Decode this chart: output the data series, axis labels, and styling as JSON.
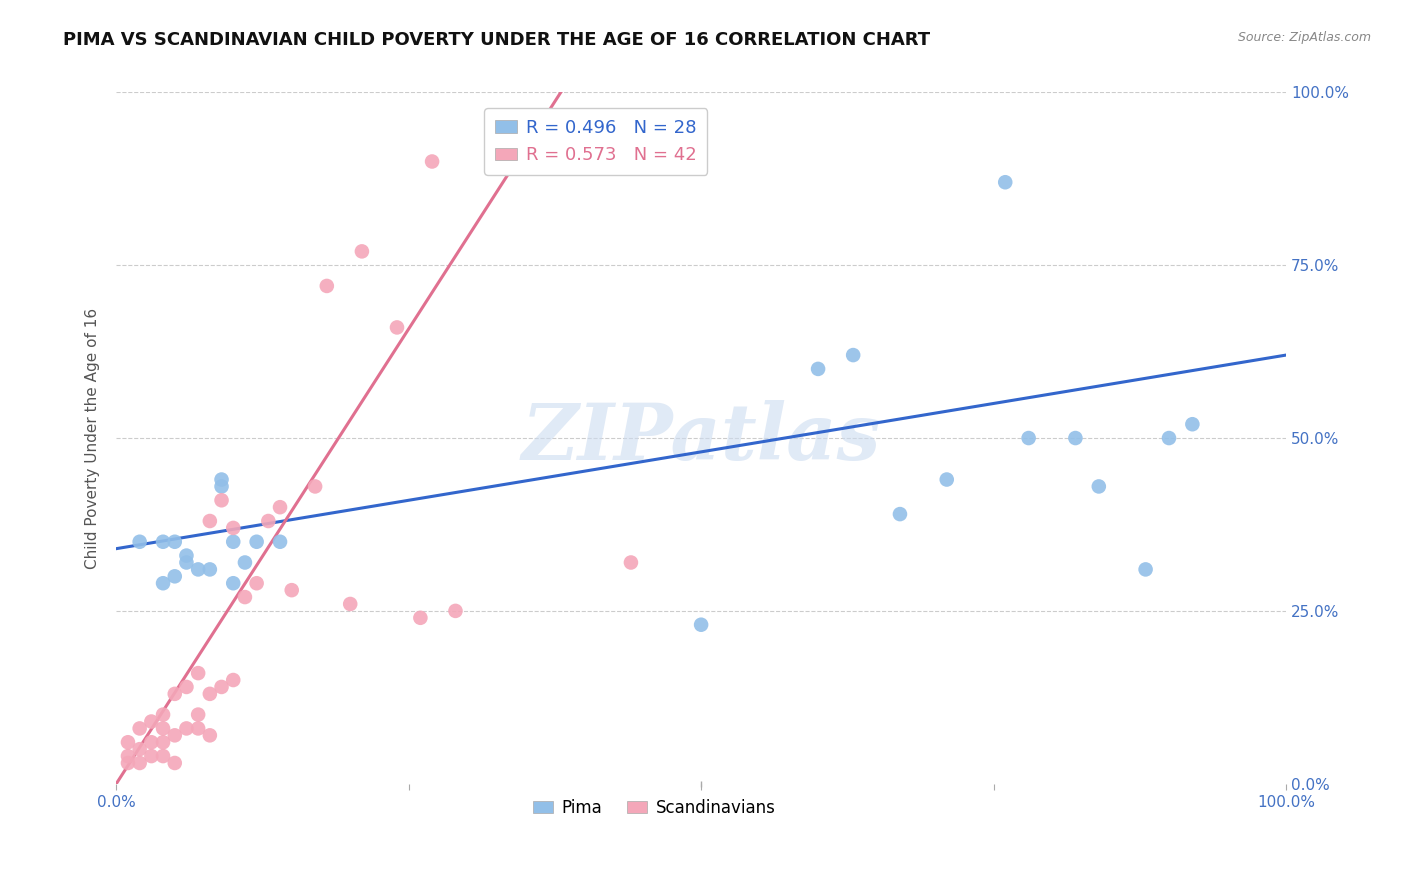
{
  "title": "PIMA VS SCANDINAVIAN CHILD POVERTY UNDER THE AGE OF 16 CORRELATION CHART",
  "source": "Source: ZipAtlas.com",
  "ylabel": "Child Poverty Under the Age of 16",
  "xlim": [
    0,
    1
  ],
  "ylim": [
    0,
    1
  ],
  "pima_color": "#92bfe8",
  "scandinavian_color": "#f4a7b9",
  "pima_line_color": "#3366cc",
  "scandinavian_line_color": "#e07090",
  "pima_R": 0.496,
  "pima_N": 28,
  "scandinavian_R": 0.573,
  "scandinavian_N": 42,
  "watermark": "ZIPatlas",
  "watermark_color": "#ccdcf0",
  "background_color": "#ffffff",
  "grid_color": "#cccccc",
  "title_fontsize": 13,
  "pima_x": [
    0.02,
    0.04,
    0.04,
    0.05,
    0.05,
    0.06,
    0.06,
    0.07,
    0.08,
    0.09,
    0.09,
    0.1,
    0.1,
    0.11,
    0.12,
    0.14,
    0.5,
    0.6,
    0.63,
    0.67,
    0.71,
    0.76,
    0.78,
    0.82,
    0.84,
    0.88,
    0.9,
    0.92
  ],
  "pima_y": [
    0.35,
    0.35,
    0.29,
    0.3,
    0.35,
    0.32,
    0.33,
    0.31,
    0.31,
    0.43,
    0.44,
    0.35,
    0.29,
    0.32,
    0.35,
    0.35,
    0.23,
    0.6,
    0.62,
    0.39,
    0.44,
    0.87,
    0.5,
    0.5,
    0.43,
    0.31,
    0.5,
    0.52
  ],
  "scandinavian_x": [
    0.01,
    0.01,
    0.01,
    0.02,
    0.02,
    0.02,
    0.03,
    0.03,
    0.03,
    0.04,
    0.04,
    0.04,
    0.04,
    0.05,
    0.05,
    0.05,
    0.06,
    0.06,
    0.07,
    0.07,
    0.07,
    0.08,
    0.08,
    0.08,
    0.09,
    0.09,
    0.1,
    0.1,
    0.11,
    0.12,
    0.13,
    0.14,
    0.15,
    0.17,
    0.18,
    0.2,
    0.21,
    0.24,
    0.26,
    0.27,
    0.29,
    0.44
  ],
  "scandinavian_y": [
    0.03,
    0.04,
    0.06,
    0.03,
    0.05,
    0.08,
    0.04,
    0.06,
    0.09,
    0.04,
    0.06,
    0.08,
    0.1,
    0.03,
    0.07,
    0.13,
    0.08,
    0.14,
    0.08,
    0.1,
    0.16,
    0.07,
    0.13,
    0.38,
    0.14,
    0.41,
    0.15,
    0.37,
    0.27,
    0.29,
    0.38,
    0.4,
    0.28,
    0.43,
    0.72,
    0.26,
    0.77,
    0.66,
    0.24,
    0.9,
    0.25,
    0.32
  ],
  "pima_line_x": [
    0.0,
    1.0
  ],
  "pima_line_y": [
    0.34,
    0.62
  ],
  "scand_line_x": [
    0.0,
    0.38
  ],
  "scand_line_y": [
    0.0,
    1.0
  ]
}
